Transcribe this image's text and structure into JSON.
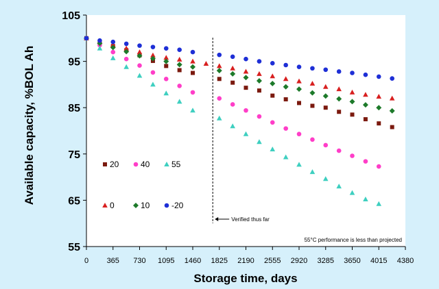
{
  "chart_data": {
    "type": "scatter",
    "title": "",
    "xlabel": "Storage time, days",
    "ylabel": "Available capacity, %BOL Ah",
    "xlim": [
      0,
      4380
    ],
    "ylim": [
      55,
      105
    ],
    "x_ticks": [
      "0",
      "365",
      "730",
      "1095",
      "1460",
      "1825",
      "2190",
      "2555",
      "2920",
      "3285",
      "3650",
      "4015",
      "4380"
    ],
    "y_ticks": [
      "55",
      "65",
      "75",
      "85",
      "95",
      "105"
    ],
    "grid": false,
    "legend_position": "lower-left",
    "x": [
      0,
      183,
      365,
      548,
      730,
      913,
      1095,
      1278,
      1460,
      1643,
      1825,
      2008,
      2190,
      2373,
      2555,
      2738,
      2920,
      3103,
      3285,
      3468,
      3650,
      3833,
      4015,
      4198
    ],
    "series": [
      {
        "name": "20",
        "marker": "square",
        "color": "#7b1a0f",
        "values": [
          100,
          99.0,
          98.3,
          97.4,
          96.3,
          95.1,
          94.0,
          93.1,
          92.5,
          null,
          91.2,
          90.4,
          89.3,
          88.7,
          87.6,
          86.8,
          86.0,
          85.4,
          85.0,
          84.1,
          83.5,
          82.5,
          81.6,
          80.8
        ]
      },
      {
        "name": "40",
        "marker": "circle",
        "color": "#ff3ec8",
        "values": [
          100,
          98.5,
          97.0,
          95.5,
          94.1,
          92.6,
          91.2,
          89.7,
          88.3,
          null,
          87.0,
          85.7,
          84.4,
          83.1,
          81.8,
          80.5,
          79.3,
          78.1,
          76.9,
          75.7,
          74.6,
          73.4,
          72.3,
          null
        ]
      },
      {
        "name": "55",
        "marker": "triangle",
        "color": "#3ecfc0",
        "values": [
          100,
          97.8,
          95.7,
          93.8,
          91.9,
          90.0,
          88.1,
          86.3,
          84.4,
          null,
          82.7,
          81.0,
          79.3,
          77.6,
          76.0,
          74.3,
          72.7,
          71.1,
          69.6,
          68.0,
          66.6,
          65.2,
          64.2,
          null
        ]
      },
      {
        "name": "0",
        "marker": "triangle",
        "color": "#d82020",
        "values": [
          100,
          99.2,
          98.6,
          97.8,
          97.0,
          96.3,
          95.8,
          95.4,
          95.0,
          94.5,
          94.0,
          93.5,
          92.8,
          92.3,
          91.8,
          91.2,
          90.7,
          90.2,
          89.5,
          89.0,
          88.3,
          87.8,
          87.4,
          87.0
        ]
      },
      {
        "name": "10",
        "marker": "diamond",
        "color": "#1d7a2a",
        "values": [
          100,
          98.9,
          98.0,
          97.1,
          96.2,
          95.6,
          95.0,
          94.3,
          93.8,
          null,
          93.0,
          92.3,
          91.5,
          90.8,
          90.2,
          89.5,
          89.0,
          88.2,
          87.5,
          86.9,
          86.3,
          85.6,
          85.0,
          84.3
        ]
      },
      {
        "name": "-20",
        "marker": "circle",
        "color": "#1e2fd6",
        "values": [
          100,
          99.5,
          99.2,
          98.8,
          98.4,
          98.1,
          97.8,
          97.5,
          97.0,
          null,
          96.4,
          96.0,
          95.5,
          95.0,
          94.6,
          94.2,
          93.8,
          93.5,
          93.2,
          92.8,
          92.5,
          92.1,
          91.7,
          91.3
        ]
      }
    ],
    "annotations": {
      "verified_text": "Verified thus far",
      "verified_x": 1735,
      "note": "55°C performance is less than projected"
    }
  }
}
